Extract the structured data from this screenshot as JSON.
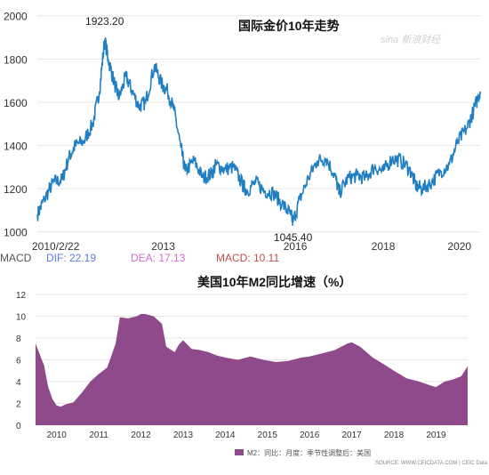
{
  "watermark": "sina 新浪财经",
  "macd": {
    "prefix": "MACD",
    "dif": "DIF: 22.19",
    "dea": "DEA: 17.13",
    "macd": "MACD: 10.11",
    "colors": {
      "dif": "#5b7ce0",
      "dea": "#d36bd0",
      "macd": "#c0504d"
    }
  },
  "chart_data": [
    {
      "type": "line",
      "title": "国际金价10年走势",
      "xlabel": "",
      "ylabel": "",
      "ylim": [
        970,
        2040
      ],
      "yticks": [
        1000,
        1200,
        1400,
        1600,
        1800,
        2000
      ],
      "xticks": [
        {
          "label": "2010/2/22",
          "x": 2010.14
        },
        {
          "label": "2013",
          "x": 2013.0
        },
        {
          "label": "2016",
          "x": 2016.0
        },
        {
          "label": "2018",
          "x": 2018.0
        },
        {
          "label": "2020",
          "x": 2020.0
        }
      ],
      "xlim": [
        2010.14,
        2020.2
      ],
      "grid": "horizontal",
      "color": "#1f7fc2",
      "annotations": [
        {
          "text": "1923.20",
          "x": 2011.67,
          "y": 1923.2
        },
        {
          "text": "1045.40",
          "x": 2015.95,
          "y": 1045.4
        }
      ],
      "x": [
        2010.14,
        2010.3,
        2010.5,
        2010.7,
        2010.85,
        2011.0,
        2011.2,
        2011.4,
        2011.55,
        2011.67,
        2011.75,
        2011.9,
        2012.0,
        2012.15,
        2012.3,
        2012.45,
        2012.6,
        2012.8,
        2012.95,
        2013.1,
        2013.25,
        2013.4,
        2013.5,
        2013.7,
        2013.9,
        2014.1,
        2014.2,
        2014.4,
        2014.6,
        2014.8,
        2014.9,
        2015.1,
        2015.3,
        2015.5,
        2015.7,
        2015.9,
        2015.95,
        2016.1,
        2016.3,
        2016.5,
        2016.7,
        2016.9,
        2017.0,
        2017.2,
        2017.4,
        2017.6,
        2017.8,
        2018.0,
        2018.2,
        2018.4,
        2018.6,
        2018.75,
        2018.9,
        2019.1,
        2019.3,
        2019.5,
        2019.7,
        2019.9,
        2020.05,
        2020.2
      ],
      "values": [
        1080,
        1150,
        1230,
        1240,
        1340,
        1400,
        1420,
        1500,
        1650,
        1890,
        1800,
        1680,
        1620,
        1720,
        1650,
        1580,
        1600,
        1770,
        1690,
        1650,
        1560,
        1390,
        1280,
        1330,
        1250,
        1270,
        1310,
        1290,
        1300,
        1220,
        1190,
        1230,
        1190,
        1180,
        1130,
        1080,
        1045,
        1150,
        1250,
        1330,
        1340,
        1260,
        1180,
        1250,
        1260,
        1250,
        1300,
        1280,
        1340,
        1330,
        1290,
        1210,
        1200,
        1230,
        1280,
        1310,
        1420,
        1480,
        1560,
        1650
      ]
    },
    {
      "type": "area",
      "title": "美国10年M2同比增速（%）",
      "xlabel": "",
      "ylabel": "",
      "ylim": [
        0,
        12
      ],
      "yticks": [
        0,
        2,
        4,
        6,
        8,
        10,
        12
      ],
      "xticks": [
        "2010",
        "2011",
        "2012",
        "2013",
        "2014",
        "2015",
        "2016",
        "2017",
        "2018",
        "2019"
      ],
      "xlim": [
        2009.5,
        2019.75
      ],
      "grid": "horizontal",
      "color": "#8e4a8b",
      "legend": "M2：同比：月度：季节性调整后：美国",
      "source": "SOURCE: WWW.CEICDATA.COM | CEIC Data",
      "x": [
        2009.5,
        2009.6,
        2009.7,
        2009.8,
        2009.9,
        2010.0,
        2010.1,
        2010.2,
        2010.4,
        2010.6,
        2010.8,
        2011.0,
        2011.2,
        2011.4,
        2011.5,
        2011.7,
        2011.9,
        2012.0,
        2012.1,
        2012.3,
        2012.5,
        2012.6,
        2012.8,
        2012.9,
        2013.0,
        2013.2,
        2013.4,
        2013.6,
        2013.8,
        2014.0,
        2014.3,
        2014.6,
        2014.9,
        2015.2,
        2015.5,
        2015.8,
        2016.0,
        2016.3,
        2016.6,
        2016.9,
        2017.0,
        2017.2,
        2017.5,
        2017.8,
        2018.0,
        2018.3,
        2018.6,
        2018.9,
        2019.0,
        2019.2,
        2019.4,
        2019.6,
        2019.75
      ],
      "values": [
        7.5,
        6.5,
        5.5,
        3.5,
        2.4,
        1.8,
        1.7,
        1.9,
        2.1,
        3.0,
        4.0,
        4.7,
        5.3,
        7.5,
        9.9,
        9.8,
        10.0,
        10.2,
        10.2,
        10.0,
        9.3,
        7.2,
        6.7,
        7.4,
        7.8,
        7.0,
        6.9,
        6.7,
        6.4,
        6.2,
        6.0,
        6.3,
        6.0,
        5.8,
        5.9,
        6.2,
        6.3,
        6.6,
        6.9,
        7.5,
        7.6,
        7.2,
        6.2,
        5.5,
        5.0,
        4.3,
        4.0,
        3.6,
        3.5,
        4.0,
        4.2,
        4.5,
        5.4
      ]
    }
  ]
}
